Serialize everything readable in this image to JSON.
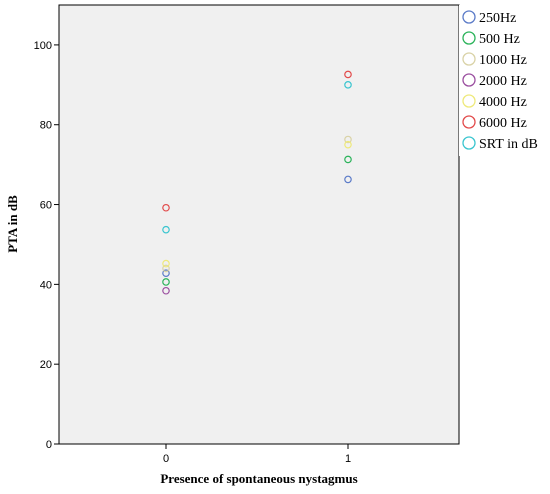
{
  "chart_data": {
    "type": "scatter",
    "xlabel": "Presence of spontaneous nystagmus",
    "ylabel": "PTA in dB",
    "categories": [
      "0",
      "1"
    ],
    "ylim": [
      0,
      110
    ],
    "yticks": [
      "0",
      "20",
      "40",
      "60",
      "80",
      "100"
    ],
    "grid": false,
    "legend_placement": "right",
    "plot_background": "#f0f0f0",
    "series": [
      {
        "name": "250Hz",
        "color": "#5b7bc8",
        "values": [
          42.8,
          66.3
        ]
      },
      {
        "name": "500 Hz",
        "color": "#2bb35a",
        "values": [
          40.6,
          71.3
        ]
      },
      {
        "name": "1000 Hz",
        "color": "#d9d2a6",
        "values": [
          44.0,
          76.3
        ]
      },
      {
        "name": "2000 Hz",
        "color": "#9b4fa0",
        "values": [
          38.4,
          null
        ]
      },
      {
        "name": "4000 Hz",
        "color": "#eee97a",
        "values": [
          45.2,
          75.0
        ]
      },
      {
        "name": "6000 Hz",
        "color": "#e24a4a",
        "values": [
          59.2,
          92.6
        ]
      },
      {
        "name": "SRT in dB",
        "color": "#39c5cf",
        "values": [
          53.7,
          90.0
        ]
      }
    ]
  }
}
